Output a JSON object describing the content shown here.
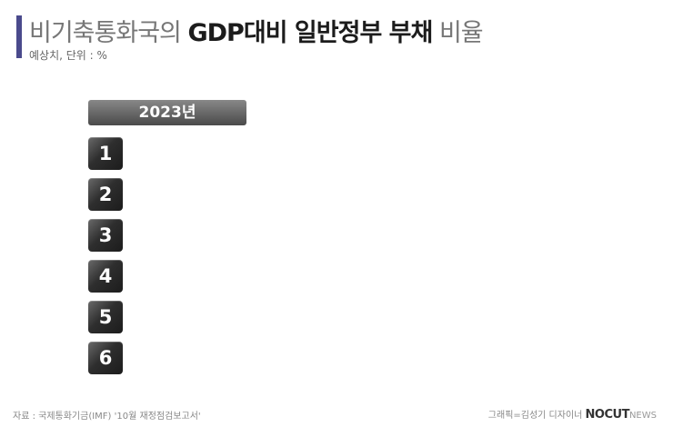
{
  "header": {
    "title_light": "비기축통화국의",
    "title_dark": "GDP대비 일반정부 부채",
    "title_end": "비율",
    "subtitle": "예상치, 단위 : %"
  },
  "chart_data": {
    "type": "table",
    "title": "비기축통화국의 GDP대비 일반정부 부채 비율",
    "subtitle": "예상치, 단위 : %",
    "columns": [
      "2023년"
    ],
    "ranks": [
      "1",
      "2",
      "3",
      "4",
      "5",
      "6"
    ],
    "rows": []
  },
  "footer": {
    "source": "자료 : 국제통화기금(IMF) '10월 재정점검보고서'",
    "credit": "그래픽=김성기 디자이너",
    "logo": "NOCUT",
    "logo_suffix": "NEWS"
  }
}
